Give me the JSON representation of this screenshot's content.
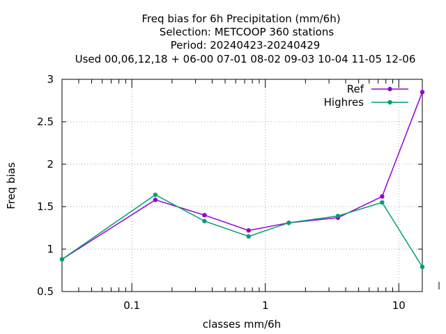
{
  "chart_data": {
    "type": "line",
    "title_lines": [
      "Freq bias  for 6h Precipitation (mm/6h)",
      "Selection: METCOOP    360 stations",
      "Period: 20240423-20240429",
      "Used  00,06,12,18 + 06-00 07-01 08-02 09-03 10-04 11-05 12-06"
    ],
    "xlabel": "classes mm/6h",
    "ylabel": "Freq bias",
    "x_scale": "log",
    "xlim": [
      0.03,
      15
    ],
    "ylim": [
      0.5,
      3
    ],
    "x_ticks": [
      0.1,
      1,
      10
    ],
    "x_tick_labels": [
      "0.1",
      "1",
      "10"
    ],
    "y_ticks": [
      0.5,
      1,
      1.5,
      2,
      2.5,
      3
    ],
    "y_tick_labels": [
      "0.5",
      "1",
      "1.5",
      "2",
      "2.5",
      "3"
    ],
    "grid": true,
    "legend_position": "top-right",
    "x": [
      0.03,
      0.15,
      0.35,
      0.75,
      1.5,
      3.5,
      7.5,
      15
    ],
    "series": [
      {
        "name": "Ref",
        "color": "#9400d3",
        "values": [
          0.88,
          1.58,
          1.4,
          1.22,
          1.31,
          1.37,
          1.62,
          2.85
        ]
      },
      {
        "name": "Highres",
        "color": "#009e73",
        "values": [
          0.88,
          1.64,
          1.33,
          1.15,
          1.31,
          1.39,
          1.55,
          0.79
        ]
      }
    ]
  }
}
